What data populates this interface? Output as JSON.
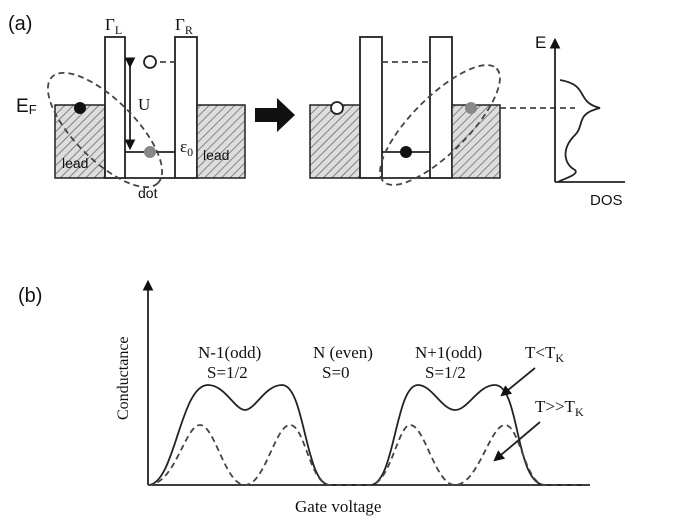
{
  "panel_a": {
    "label": "(a)",
    "gamma_l": {
      "main": "Γ",
      "sub": "L"
    },
    "gamma_r": {
      "main": "Γ",
      "sub": "R"
    },
    "fermi": {
      "main": "E",
      "sub": "F"
    },
    "charging": "U",
    "level": {
      "main": "ε",
      "sub": "0"
    },
    "lead_left": "lead",
    "lead_right": "lead",
    "dot": "dot",
    "dos_y": "E",
    "dos_x": "DOS"
  },
  "panel_b": {
    "label": "(b)",
    "y_axis": "Conductance",
    "x_axis": "Gate voltage",
    "regions": [
      {
        "n": "N-1(odd)",
        "s": "S=1/2"
      },
      {
        "n": "N (even)",
        "s": "S=0"
      },
      {
        "n": "N+1(odd)",
        "s": "S=1/2"
      }
    ],
    "low_t": {
      "main": "T<T",
      "sub": "K"
    },
    "high_t": {
      "main": "T>>T",
      "sub": "K"
    }
  }
}
